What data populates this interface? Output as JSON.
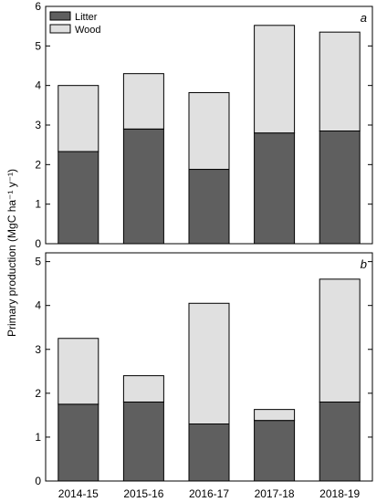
{
  "colors": {
    "litter": "#5f5f5f",
    "wood": "#e0e0e0",
    "stroke": "#000000",
    "background": "#ffffff"
  },
  "chart_data": [
    {
      "type": "bar",
      "stacked": true,
      "panel_label": "a",
      "categories": [
        "2014-15",
        "2015-16",
        "2016-17",
        "2017-18",
        "2018-19"
      ],
      "series": [
        {
          "name": "Litter",
          "values": [
            2.33,
            2.9,
            1.88,
            2.8,
            2.85
          ]
        },
        {
          "name": "Wood",
          "values": [
            1.67,
            1.4,
            1.94,
            2.72,
            2.5
          ]
        }
      ],
      "ylabel": "Primary production (MgC ha⁻¹ y⁻¹)",
      "ylim": [
        0,
        6
      ],
      "yticks": [
        0,
        1,
        2,
        3,
        4,
        5,
        6
      ],
      "grid": false,
      "legend": "top-left",
      "show_x_tick_labels": false
    },
    {
      "type": "bar",
      "stacked": true,
      "panel_label": "b",
      "categories": [
        "2014-15",
        "2015-16",
        "2016-17",
        "2017-18",
        "2018-19"
      ],
      "series": [
        {
          "name": "Litter",
          "values": [
            1.75,
            1.8,
            1.3,
            1.38,
            1.8
          ]
        },
        {
          "name": "Wood",
          "values": [
            1.5,
            0.6,
            2.75,
            0.25,
            2.8
          ]
        }
      ],
      "ylim": [
        0,
        5.2
      ],
      "yticks": [
        0,
        1,
        2,
        3,
        4,
        5
      ],
      "grid": false,
      "show_x_tick_labels": true
    }
  ]
}
